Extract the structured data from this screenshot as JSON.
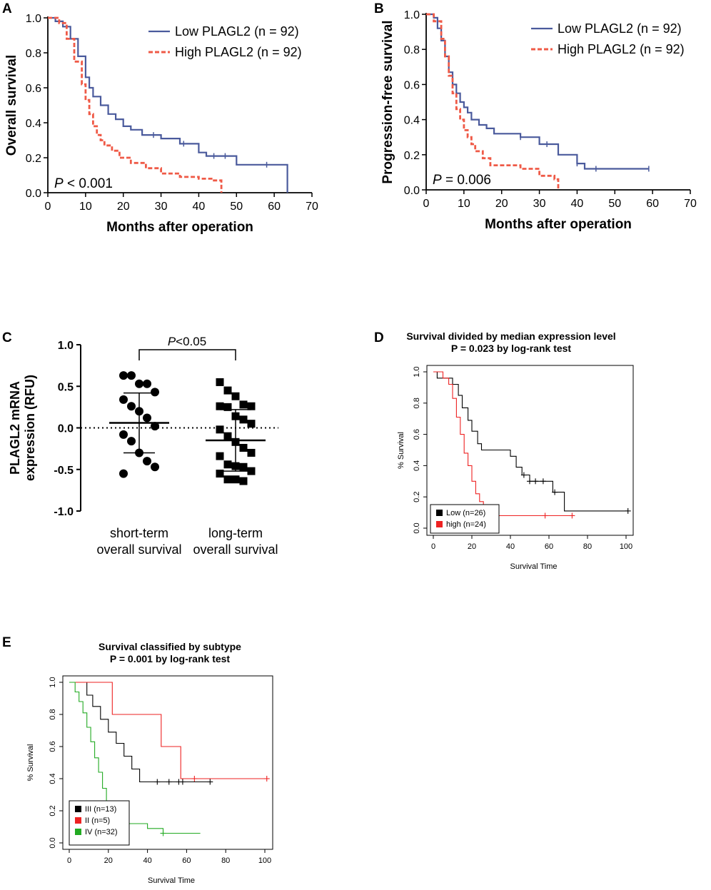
{
  "colors": {
    "low": "#4a5a9c",
    "high": "#ef5a47",
    "black": "#000000",
    "red": "#ee2222",
    "green": "#22aa22"
  },
  "chart_data": [
    {
      "panel": "A",
      "type": "line",
      "subtype": "kaplan-meier",
      "xlabel": "Months after operation",
      "ylabel": "Overall survival",
      "xlim": [
        0,
        70
      ],
      "ylim": [
        0,
        1
      ],
      "xticks": [
        0,
        10,
        20,
        30,
        40,
        50,
        60,
        70
      ],
      "yticks": [
        "0.0",
        "0.2",
        "0.4",
        "0.6",
        "0.8",
        "1.0"
      ],
      "annotation": {
        "italic": "P",
        "rest": " < 0.001"
      },
      "legend": [
        "Low PLAGL2 (n = 92)",
        "High PLAGL2 (n = 92)"
      ],
      "series": [
        {
          "name": "Low PLAGL2 (n = 92)",
          "color_key": "low",
          "x": [
            0,
            2,
            4,
            6,
            8,
            10,
            11,
            12,
            14,
            16,
            18,
            20,
            22,
            25,
            30,
            35,
            40,
            42,
            50,
            58,
            63.5,
            63.5
          ],
          "y": [
            1.0,
            0.98,
            0.95,
            0.88,
            0.78,
            0.66,
            0.6,
            0.55,
            0.5,
            0.45,
            0.42,
            0.38,
            0.36,
            0.33,
            0.31,
            0.28,
            0.23,
            0.21,
            0.16,
            0.16,
            0.16,
            0.0
          ],
          "censor_x": [
            28,
            36,
            44,
            47,
            58
          ]
        },
        {
          "name": "High PLAGL2 (n = 92)",
          "color_key": "high",
          "x": [
            0,
            3,
            5,
            7,
            9,
            10,
            11,
            12,
            13,
            14,
            15,
            17,
            19,
            22,
            26,
            30,
            35,
            40,
            44,
            46,
            46
          ],
          "y": [
            1.0,
            0.97,
            0.88,
            0.75,
            0.62,
            0.53,
            0.45,
            0.38,
            0.33,
            0.3,
            0.27,
            0.24,
            0.2,
            0.17,
            0.14,
            0.11,
            0.09,
            0.08,
            0.07,
            0.07,
            0.0
          ],
          "censor_x": []
        }
      ]
    },
    {
      "panel": "B",
      "type": "line",
      "subtype": "kaplan-meier",
      "xlabel": "Months after operation",
      "ylabel": "Progression-free survival",
      "xlim": [
        0,
        70
      ],
      "ylim": [
        0,
        1
      ],
      "xticks": [
        0,
        10,
        20,
        30,
        40,
        50,
        60,
        70
      ],
      "yticks": [
        "0.0",
        "0.2",
        "0.4",
        "0.6",
        "0.8",
        "1.0"
      ],
      "annotation": {
        "italic": "P",
        "rest": " = 0.006"
      },
      "legend": [
        "Low PLAGL2 (n = 92)",
        "High PLAGL2 (n = 92)"
      ],
      "series": [
        {
          "name": "Low PLAGL2 (n = 92)",
          "color_key": "low",
          "x": [
            0,
            2,
            3,
            4,
            5,
            6,
            7,
            8,
            9,
            10,
            11,
            12,
            14,
            16,
            18,
            20,
            25,
            30,
            35,
            40,
            42,
            50,
            59
          ],
          "y": [
            1.0,
            0.98,
            0.92,
            0.85,
            0.76,
            0.67,
            0.6,
            0.55,
            0.5,
            0.47,
            0.44,
            0.4,
            0.37,
            0.35,
            0.32,
            0.32,
            0.3,
            0.26,
            0.2,
            0.15,
            0.12,
            0.12,
            0.12
          ],
          "censor_x": [
            25,
            32,
            40,
            45,
            59
          ]
        },
        {
          "name": "High PLAGL2 (n = 92)",
          "color_key": "high",
          "x": [
            0,
            2,
            4,
            5,
            6,
            7,
            8,
            9,
            10,
            11,
            12,
            13,
            15,
            17,
            20,
            25,
            30,
            34,
            35,
            35
          ],
          "y": [
            1.0,
            0.96,
            0.86,
            0.76,
            0.65,
            0.55,
            0.46,
            0.4,
            0.34,
            0.3,
            0.26,
            0.22,
            0.18,
            0.14,
            0.14,
            0.12,
            0.08,
            0.06,
            0.04,
            0.0
          ],
          "censor_x": []
        }
      ]
    },
    {
      "panel": "C",
      "type": "scatter",
      "ylabel_lines": [
        "PLAGL2 mRNA",
        "expression (RFU)"
      ],
      "ylim": [
        -1.0,
        1.0
      ],
      "yticks": [
        "1.0",
        "0.5",
        "0.0",
        "-0.5",
        "-1.0"
      ],
      "significance": {
        "italic": "P",
        "rest": "<0.05"
      },
      "groups": [
        {
          "label_lines": [
            "short-term",
            "overall survival"
          ],
          "marker": "circle",
          "mean": 0.06,
          "sd": 0.36,
          "values": [
            0.63,
            0.63,
            0.53,
            0.53,
            0.43,
            0.34,
            0.26,
            0.2,
            0.12,
            0.02,
            -0.08,
            -0.16,
            -0.3,
            -0.4,
            -0.47,
            -0.55
          ]
        },
        {
          "label_lines": [
            "long-term",
            "overall survival"
          ],
          "marker": "square",
          "mean": -0.15,
          "sd": 0.37,
          "values": [
            0.55,
            0.45,
            0.38,
            0.28,
            0.26,
            0.26,
            0.25,
            0.14,
            0.1,
            0.05,
            -0.02,
            -0.1,
            -0.17,
            -0.24,
            -0.3,
            -0.34,
            -0.44,
            -0.46,
            -0.47,
            -0.52,
            -0.55,
            -0.62,
            -0.62,
            -0.64
          ]
        }
      ]
    },
    {
      "panel": "D",
      "type": "line",
      "subtype": "kaplan-meier",
      "title_lines": [
        "Survival divided by median expression level",
        "P = 0.023 by log-rank test"
      ],
      "xlabel": "Survival Time",
      "ylabel": "% Survival",
      "xlim": [
        0,
        100
      ],
      "ylim": [
        0,
        1
      ],
      "xticks": [
        "0",
        "20",
        "40",
        "60",
        "80",
        "100"
      ],
      "yticks": [
        "0.0",
        "0.2",
        "0.4",
        "0.6",
        "0.8",
        "1.0"
      ],
      "legend": [
        "Low (n=26)",
        "high (n=24)"
      ],
      "series": [
        {
          "name": "Low (n=26)",
          "color_key": "black",
          "x": [
            0,
            2,
            6,
            10,
            13,
            15,
            18,
            20,
            23,
            25,
            28,
            35,
            40,
            43,
            46,
            50,
            60,
            62,
            66,
            68,
            101
          ],
          "y": [
            1.0,
            0.96,
            0.96,
            0.92,
            0.85,
            0.77,
            0.69,
            0.62,
            0.54,
            0.5,
            0.5,
            0.5,
            0.46,
            0.39,
            0.34,
            0.3,
            0.3,
            0.23,
            0.23,
            0.11,
            0.11
          ],
          "censor_x": [
            47,
            50,
            53,
            57,
            63,
            101
          ]
        },
        {
          "name": "high (n=24)",
          "color_key": "red",
          "x": [
            0,
            5,
            8,
            10,
            12,
            14,
            16,
            18,
            20,
            22,
            24,
            26,
            27,
            72
          ],
          "y": [
            1.0,
            0.96,
            0.92,
            0.83,
            0.71,
            0.6,
            0.48,
            0.4,
            0.3,
            0.22,
            0.17,
            0.13,
            0.08,
            0.08
          ],
          "censor_x": [
            58,
            72
          ]
        }
      ]
    },
    {
      "panel": "E",
      "type": "line",
      "subtype": "kaplan-meier",
      "title_lines": [
        "Survival classified by subtype",
        "P = 0.001 by log-rank test"
      ],
      "xlabel": "Survival Time",
      "ylabel": "% Survival",
      "xlim": [
        0,
        100
      ],
      "ylim": [
        0,
        1
      ],
      "xticks": [
        "0",
        "20",
        "40",
        "60",
        "80",
        "100"
      ],
      "yticks": [
        "0.0",
        "0.2",
        "0.4",
        "0.6",
        "0.8",
        "1.0"
      ],
      "legend": [
        "III (n=13)",
        "II (n=5)",
        "IV (n=32)"
      ],
      "series": [
        {
          "name": "III (n=13)",
          "color_key": "black",
          "x": [
            0,
            9,
            12,
            16,
            20,
            24,
            28,
            32,
            36,
            72
          ],
          "y": [
            1.0,
            0.92,
            0.85,
            0.77,
            0.69,
            0.62,
            0.54,
            0.46,
            0.38,
            0.38
          ],
          "censor_x": [
            45,
            51,
            56,
            58,
            72
          ]
        },
        {
          "name": "II (n=5)",
          "color_key": "red",
          "x": [
            0,
            22,
            47,
            57,
            101
          ],
          "y": [
            1.0,
            0.8,
            0.6,
            0.4,
            0.4
          ],
          "censor_x": [
            64,
            101
          ]
        },
        {
          "name": "IV (n=32)",
          "color_key": "green",
          "x": [
            0,
            3,
            5,
            7,
            9,
            11,
            13,
            15,
            17,
            19,
            21,
            23,
            30,
            40,
            48,
            67
          ],
          "y": [
            1.0,
            0.94,
            0.88,
            0.81,
            0.72,
            0.63,
            0.53,
            0.44,
            0.34,
            0.25,
            0.19,
            0.16,
            0.12,
            0.09,
            0.06,
            0.06
          ],
          "censor_x": [
            48
          ]
        }
      ]
    }
  ]
}
